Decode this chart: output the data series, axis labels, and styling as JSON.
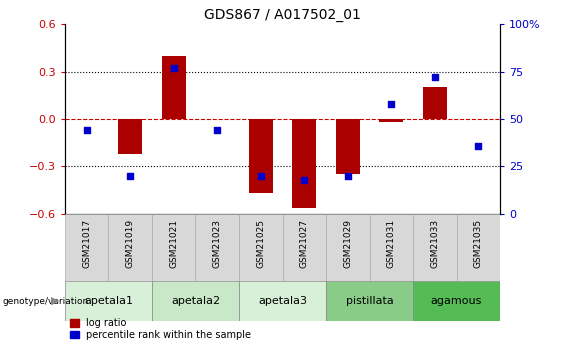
{
  "title": "GDS867 / A017502_01",
  "samples": [
    "GSM21017",
    "GSM21019",
    "GSM21021",
    "GSM21023",
    "GSM21025",
    "GSM21027",
    "GSM21029",
    "GSM21031",
    "GSM21033",
    "GSM21035"
  ],
  "log_ratio": [
    0.0,
    -0.22,
    0.4,
    0.0,
    -0.47,
    -0.56,
    -0.35,
    -0.02,
    0.2,
    0.0
  ],
  "percentile_rank": [
    44,
    20,
    77,
    44,
    20,
    18,
    20,
    58,
    72,
    36
  ],
  "ylim_left": [
    -0.6,
    0.6
  ],
  "ylim_right": [
    0,
    100
  ],
  "yticks_left": [
    -0.6,
    -0.3,
    0.0,
    0.3,
    0.6
  ],
  "yticks_right": [
    0,
    25,
    50,
    75,
    100
  ],
  "groups": [
    {
      "label": "apetala1",
      "start": 0,
      "end": 2,
      "color": "#d8f0d8"
    },
    {
      "label": "apetala2",
      "start": 2,
      "end": 4,
      "color": "#c8e8c8"
    },
    {
      "label": "apetala3",
      "start": 4,
      "end": 6,
      "color": "#d8f0d8"
    },
    {
      "label": "pistillata",
      "start": 6,
      "end": 8,
      "color": "#88cc88"
    },
    {
      "label": "agamous",
      "start": 8,
      "end": 10,
      "color": "#55bb55"
    }
  ],
  "bar_color": "#aa0000",
  "dot_color": "#0000cc",
  "hline_color": "#cc0000",
  "grid_color": "#000000",
  "left_tick_color": "#cc0000",
  "right_tick_color": "#0000cc",
  "bar_width": 0.55,
  "dot_size": 22,
  "sample_box_color": "#d8d8d8",
  "sample_box_edge": "#aaaaaa"
}
